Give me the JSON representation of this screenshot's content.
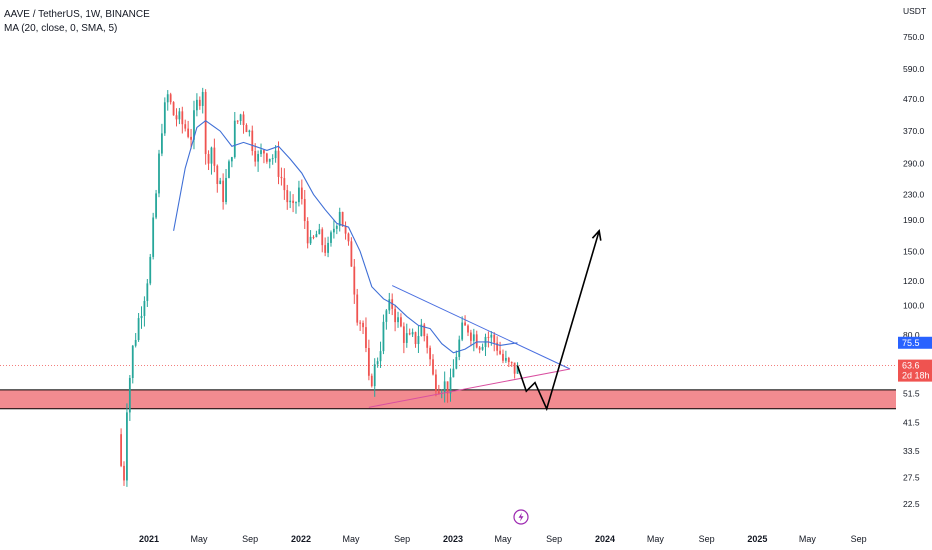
{
  "legend": {
    "symbol_line": "AAVE / TetherUS, 1W, BINANCE",
    "ma_line": "MA (20, close, 0, SMA, 5)"
  },
  "colors": {
    "up": "#26a69a",
    "down": "#ef5350",
    "ma": "#3f6fd6",
    "triangle_upper": "#4a6fe0",
    "triangle_lower": "#d94fa0",
    "zone_fill": "#f28b90",
    "zone_border": "#000000",
    "projection": "#000000",
    "current_price_bg": "#ef5350",
    "ma_price_bg": "#2962ff",
    "lightning": "#9c27b0"
  },
  "chart_data": {
    "type": "candlestick",
    "scale": "log",
    "currency_label": "USDT",
    "y_ticks": [
      750.0,
      590.0,
      470.0,
      370.0,
      290.0,
      230.0,
      190.0,
      150.0,
      120.0,
      100.0,
      80.0,
      65.0,
      51.5,
      41.5,
      33.5,
      27.5,
      22.5
    ],
    "y_tick_labels": [
      "750.0",
      "590.0",
      "470.0",
      "370.0",
      "290.0",
      "230.0",
      "190.0",
      "150.0",
      "120.0",
      "100.0",
      "80.0",
      "",
      "51.5",
      "41.5",
      "33.5",
      "27.5",
      "22.5"
    ],
    "x_ticks": [
      {
        "label": "2021",
        "date": "2021-01-01",
        "year": true
      },
      {
        "label": "May",
        "date": "2021-05-01",
        "year": false
      },
      {
        "label": "Sep",
        "date": "2021-09-01",
        "year": false
      },
      {
        "label": "2022",
        "date": "2022-01-01",
        "year": true
      },
      {
        "label": "May",
        "date": "2022-05-01",
        "year": false
      },
      {
        "label": "Sep",
        "date": "2022-09-01",
        "year": false
      },
      {
        "label": "2023",
        "date": "2023-01-01",
        "year": true
      },
      {
        "label": "May",
        "date": "2023-05-01",
        "year": false
      },
      {
        "label": "Sep",
        "date": "2023-09-01",
        "year": false
      },
      {
        "label": "2024",
        "date": "2024-01-01",
        "year": true
      },
      {
        "label": "May",
        "date": "2024-05-01",
        "year": false
      },
      {
        "label": "Sep",
        "date": "2024-09-01",
        "year": false
      },
      {
        "label": "2025",
        "date": "2025-01-01",
        "year": true
      },
      {
        "label": "May",
        "date": "2025-05-01",
        "year": false
      },
      {
        "label": "Sep",
        "date": "2025-09-01",
        "year": false
      }
    ],
    "current_price": {
      "value": 63.6,
      "label": "63.6",
      "countdown": "2d 18h"
    },
    "ma_value": {
      "value": 75.5,
      "label": "75.5"
    },
    "close_anchors": [
      [
        "2020-10-19",
        38
      ],
      [
        "2020-10-26",
        30
      ],
      [
        "2020-11-02",
        28
      ],
      [
        "2020-11-09",
        48
      ],
      [
        "2020-11-23",
        72
      ],
      [
        "2020-12-07",
        90
      ],
      [
        "2020-12-21",
        110
      ],
      [
        "2021-01-04",
        140
      ],
      [
        "2021-01-18",
        230
      ],
      [
        "2021-02-01",
        390
      ],
      [
        "2021-02-15",
        480
      ],
      [
        "2021-03-01",
        420
      ],
      [
        "2021-03-15",
        400
      ],
      [
        "2021-03-29",
        380
      ],
      [
        "2021-04-12",
        360
      ],
      [
        "2021-04-26",
        450
      ],
      [
        "2021-05-10",
        520
      ],
      [
        "2021-05-17",
        300
      ],
      [
        "2021-05-31",
        330
      ],
      [
        "2021-06-14",
        250
      ],
      [
        "2021-06-28",
        230
      ],
      [
        "2021-07-12",
        280
      ],
      [
        "2021-07-26",
        380
      ],
      [
        "2021-08-09",
        420
      ],
      [
        "2021-08-23",
        390
      ],
      [
        "2021-09-06",
        340
      ],
      [
        "2021-09-20",
        300
      ],
      [
        "2021-10-04",
        320
      ],
      [
        "2021-10-18",
        310
      ],
      [
        "2021-11-01",
        300
      ],
      [
        "2021-11-15",
        260
      ],
      [
        "2021-11-29",
        220
      ],
      [
        "2021-12-13",
        200
      ],
      [
        "2021-12-27",
        240
      ],
      [
        "2022-01-10",
        190
      ],
      [
        "2022-01-24",
        155
      ],
      [
        "2022-02-07",
        170
      ],
      [
        "2022-02-21",
        160
      ],
      [
        "2022-03-07",
        150
      ],
      [
        "2022-03-21",
        180
      ],
      [
        "2022-04-04",
        210
      ],
      [
        "2022-04-18",
        165
      ],
      [
        "2022-05-02",
        140
      ],
      [
        "2022-05-16",
        95
      ],
      [
        "2022-05-30",
        85
      ],
      [
        "2022-06-13",
        55
      ],
      [
        "2022-06-27",
        62
      ],
      [
        "2022-07-11",
        75
      ],
      [
        "2022-07-25",
        95
      ],
      [
        "2022-08-08",
        100
      ],
      [
        "2022-08-22",
        88
      ],
      [
        "2022-09-05",
        80
      ],
      [
        "2022-09-19",
        76
      ],
      [
        "2022-10-03",
        78
      ],
      [
        "2022-10-17",
        85
      ],
      [
        "2022-10-31",
        75
      ],
      [
        "2022-11-14",
        58
      ],
      [
        "2022-11-28",
        56
      ],
      [
        "2022-12-12",
        55
      ],
      [
        "2022-12-26",
        54
      ],
      [
        "2023-01-09",
        70
      ],
      [
        "2023-01-23",
        82
      ],
      [
        "2023-02-06",
        85
      ],
      [
        "2023-02-20",
        80
      ],
      [
        "2023-03-06",
        76
      ],
      [
        "2023-03-20",
        80
      ],
      [
        "2023-04-03",
        78
      ],
      [
        "2023-04-17",
        74
      ],
      [
        "2023-05-01",
        66
      ],
      [
        "2023-05-15",
        63
      ],
      [
        "2023-05-29",
        62
      ],
      [
        "2023-06-05",
        63.6
      ]
    ],
    "ma_anchors": [
      [
        "2021-03-01",
        175
      ],
      [
        "2021-03-29",
        280
      ],
      [
        "2021-04-26",
        380
      ],
      [
        "2021-05-17",
        400
      ],
      [
        "2021-06-21",
        370
      ],
      [
        "2021-07-19",
        330
      ],
      [
        "2021-08-16",
        340
      ],
      [
        "2021-09-13",
        330
      ],
      [
        "2021-10-11",
        320
      ],
      [
        "2021-11-08",
        330
      ],
      [
        "2021-12-06",
        300
      ],
      [
        "2022-01-03",
        270
      ],
      [
        "2022-01-31",
        230
      ],
      [
        "2022-02-28",
        205
      ],
      [
        "2022-03-28",
        185
      ],
      [
        "2022-04-25",
        180
      ],
      [
        "2022-05-23",
        150
      ],
      [
        "2022-06-20",
        115
      ],
      [
        "2022-07-18",
        105
      ],
      [
        "2022-08-15",
        100
      ],
      [
        "2022-09-12",
        92
      ],
      [
        "2022-10-10",
        86
      ],
      [
        "2022-11-07",
        84
      ],
      [
        "2022-12-05",
        75
      ],
      [
        "2023-01-02",
        70
      ],
      [
        "2023-01-30",
        72
      ],
      [
        "2023-02-27",
        76
      ],
      [
        "2023-03-27",
        76
      ],
      [
        "2023-04-24",
        74
      ],
      [
        "2023-06-05",
        75.5
      ]
    ],
    "triangle_upper": [
      [
        "2022-08-08",
        116
      ],
      [
        "2023-10-09",
        62
      ]
    ],
    "triangle_lower": [
      [
        "2022-06-13",
        46.5
      ],
      [
        "2023-10-09",
        62
      ]
    ],
    "zone": {
      "top": 53.0,
      "bottom": 46.0
    },
    "projection_path": [
      [
        "2023-06-05",
        63.6
      ],
      [
        "2023-06-26",
        52.5
      ],
      [
        "2023-07-17",
        56
      ],
      [
        "2023-08-14",
        46
      ],
      [
        "2023-12-18",
        175
      ]
    ]
  }
}
